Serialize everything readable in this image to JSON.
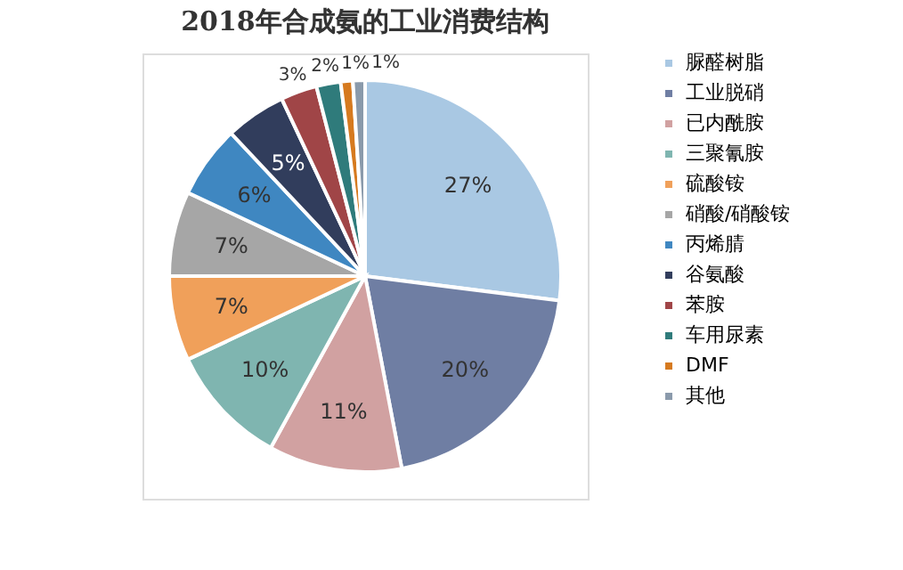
{
  "chart_data": {
    "type": "pie",
    "title": "2018年合成氨的工业消费结构",
    "categories": [
      "脲醛树脂",
      "工业脱硝",
      "已内酰胺",
      "三聚氰胺",
      "硫酸铵",
      "硝酸/硝酸铵",
      "丙烯腈",
      "谷氨酸",
      "苯胺",
      "车用尿素",
      "DMF",
      "其他"
    ],
    "values": [
      27,
      20,
      11,
      10,
      7,
      7,
      6,
      5,
      3,
      2,
      1,
      1
    ],
    "value_labels": [
      "27%",
      "20%",
      "11%",
      "10%",
      "7%",
      "7%",
      "6%",
      "5%",
      "3%",
      "2%",
      "1%",
      "1%"
    ],
    "colors": [
      "#a9c8e3",
      "#6f7ea3",
      "#d1a1a1",
      "#7fb5b0",
      "#f0a05a",
      "#a6a6a6",
      "#3f87c1",
      "#313d5c",
      "#a04547",
      "#2f7b7b",
      "#d67a1f",
      "#8a9aab"
    ],
    "legend": "right"
  }
}
